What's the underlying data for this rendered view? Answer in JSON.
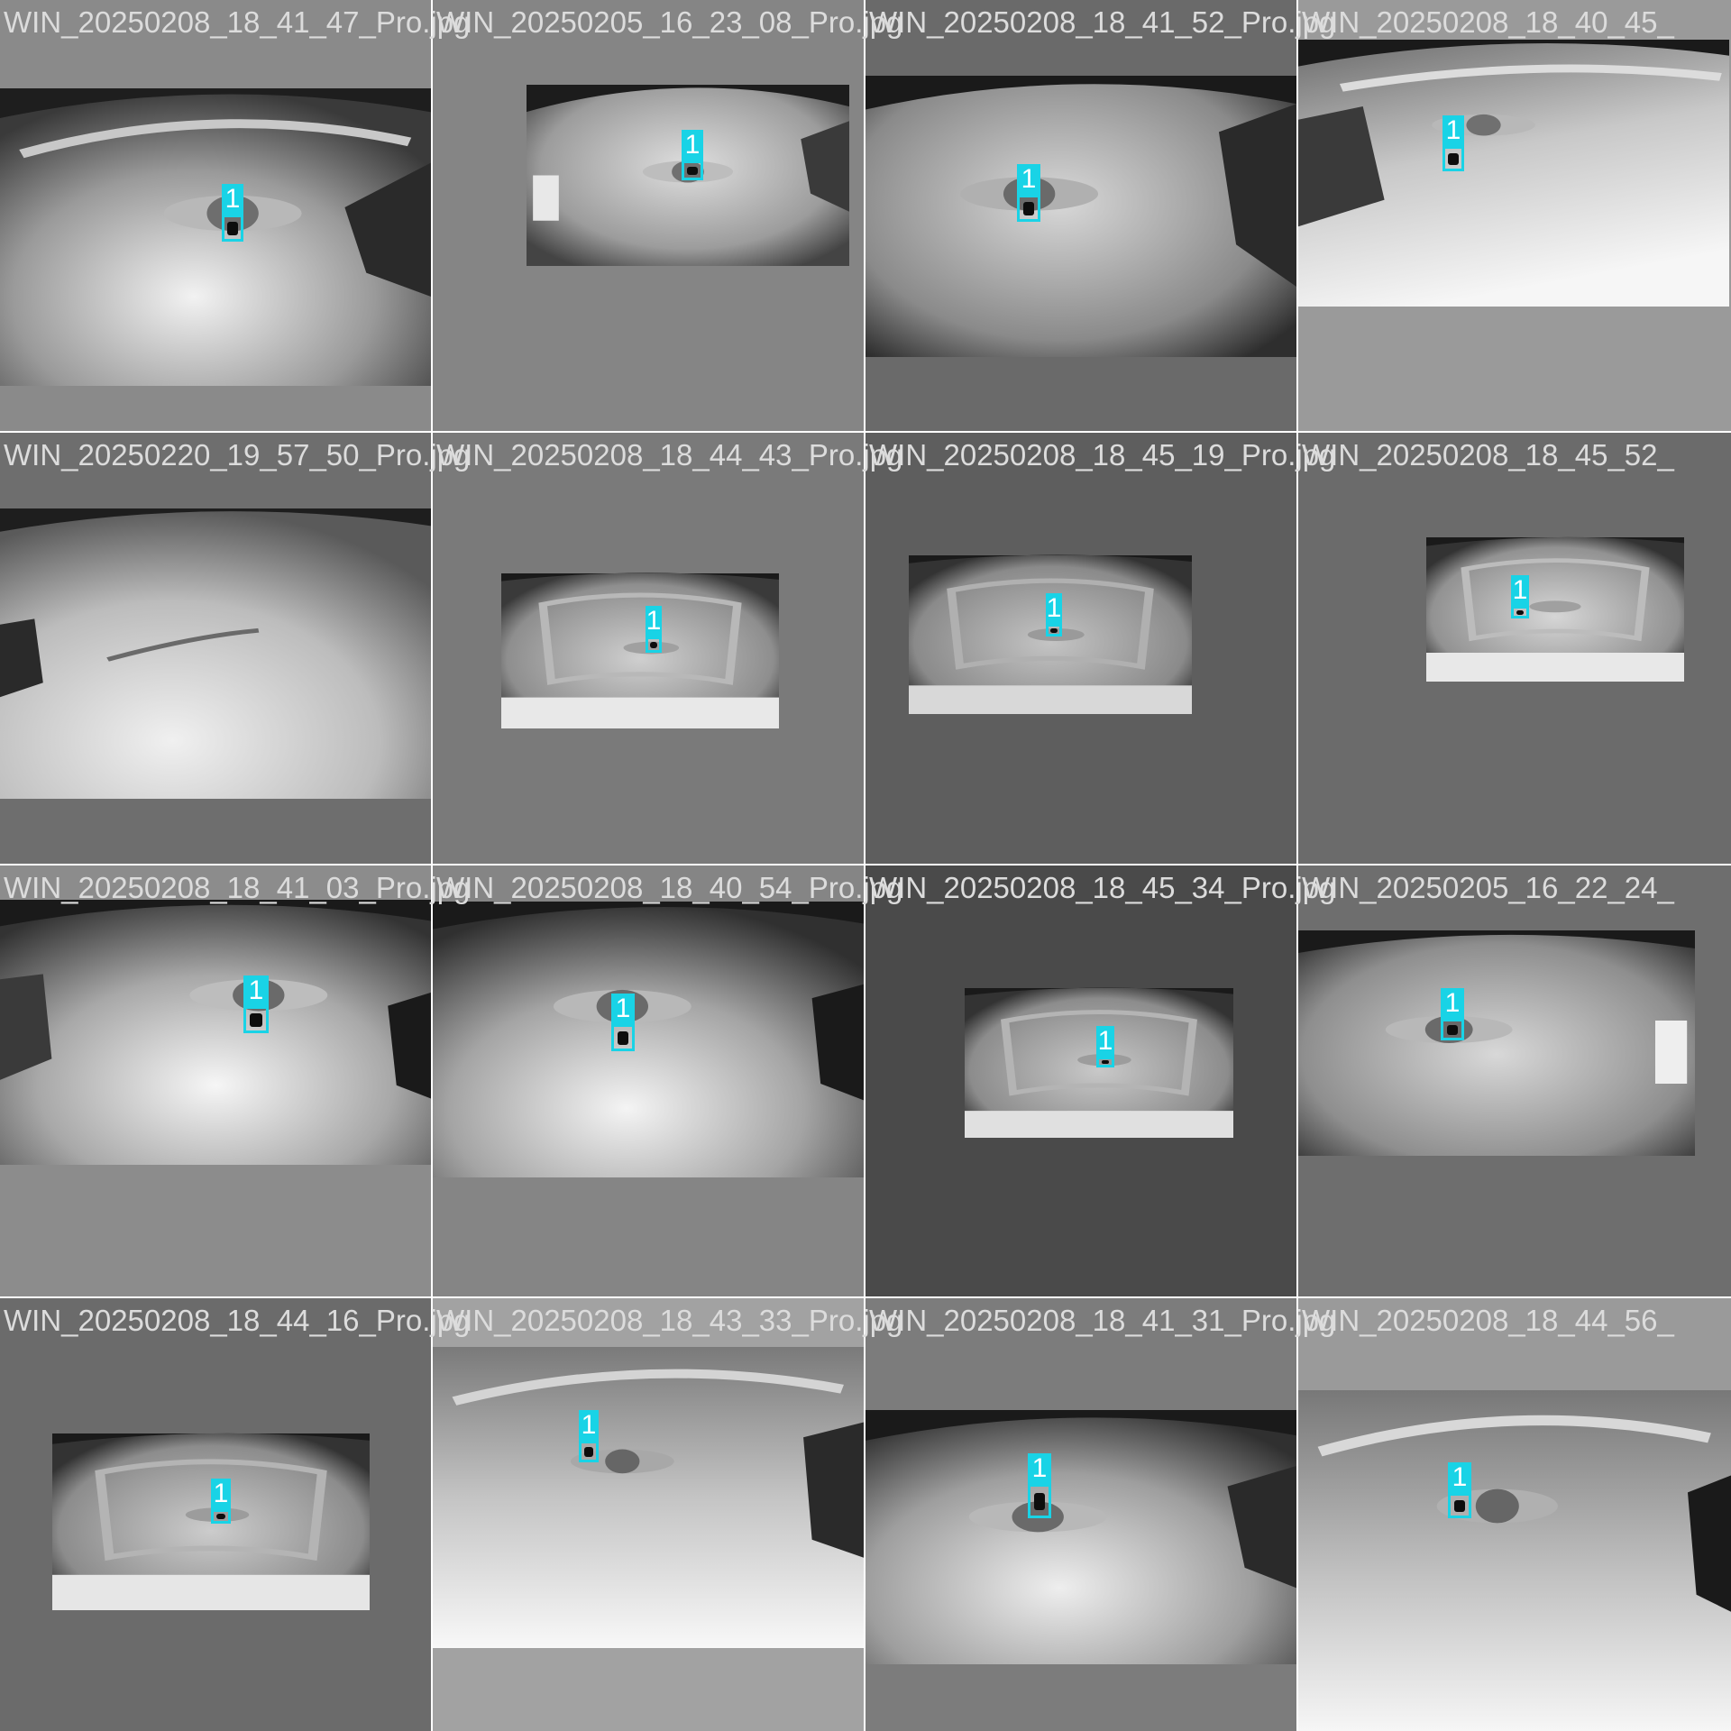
{
  "grid": {
    "rows": 4,
    "columns": 4
  },
  "colors": {
    "detection_box": "#19d3e6",
    "label_text": "#ffffff",
    "filename_text": "#dcdcdc",
    "tile_separator": "#ffffff"
  },
  "tiles": [
    {
      "filename": "WIN_20250208_18_41_47_Pro.jpg",
      "detections": [
        {
          "class_label": "1"
        }
      ]
    },
    {
      "filename": "WIN_20250205_16_23_08_Pro.jpg",
      "detections": [
        {
          "class_label": "1"
        }
      ]
    },
    {
      "filename": "WIN_20250208_18_41_52_Pro.jpg",
      "detections": [
        {
          "class_label": "1"
        }
      ]
    },
    {
      "filename": "WIN_20250208_18_40_45_",
      "detections": [
        {
          "class_label": "1"
        }
      ]
    },
    {
      "filename": "WIN_20250220_19_57_50_Pro.jpg",
      "detections": []
    },
    {
      "filename": "WIN_20250208_18_44_43_Pro.jpg",
      "detections": [
        {
          "class_label": "1"
        }
      ]
    },
    {
      "filename": "WIN_20250208_18_45_19_Pro.jpg",
      "detections": [
        {
          "class_label": "1"
        }
      ]
    },
    {
      "filename": "WIN_20250208_18_45_52_",
      "detections": [
        {
          "class_label": "1"
        }
      ]
    },
    {
      "filename": "WIN_20250208_18_41_03_Pro.jpg",
      "detections": [
        {
          "class_label": "1"
        }
      ]
    },
    {
      "filename": "WIN_20250208_18_40_54_Pro.jpg",
      "detections": [
        {
          "class_label": "1"
        }
      ]
    },
    {
      "filename": "WIN_20250208_18_45_34_Pro.jpg",
      "detections": [
        {
          "class_label": "1"
        }
      ]
    },
    {
      "filename": "WIN_20250205_16_22_24_",
      "detections": [
        {
          "class_label": "1"
        }
      ]
    },
    {
      "filename": "WIN_20250208_18_44_16_Pro.jpg",
      "detections": [
        {
          "class_label": "1"
        }
      ]
    },
    {
      "filename": "WIN_20250208_18_43_33_Pro.jpg",
      "detections": [
        {
          "class_label": "1"
        }
      ]
    },
    {
      "filename": "WIN_20250208_18_41_31_Pro.jpg",
      "detections": [
        {
          "class_label": "1"
        }
      ]
    },
    {
      "filename": "WIN_20250208_18_44_56_",
      "detections": [
        {
          "class_label": "1"
        }
      ]
    }
  ]
}
